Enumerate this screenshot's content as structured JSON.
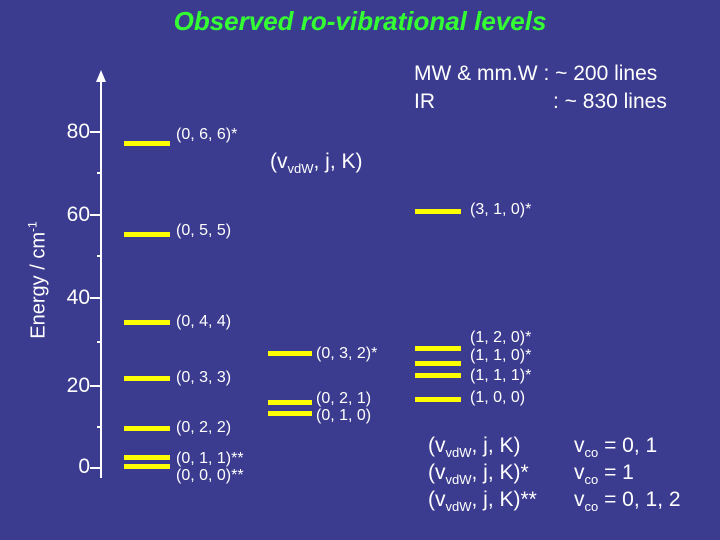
{
  "title": "Observed ro-vibrational levels",
  "stats": {
    "mw_line": "MW & mm.W : ~ 200 lines",
    "ir_label": "IR",
    "ir_value": ": ~ 830 lines"
  },
  "axis": {
    "ylabel": "Energy / cm",
    "ylabel_sup": "-1",
    "ticks": [
      "0",
      "20",
      "40",
      "60",
      "80"
    ]
  },
  "notation": {
    "prefix": "(v",
    "sub": "vdW",
    "suffix": ", j, K)"
  },
  "levels": {
    "col1": [
      "(0, 0, 0)**",
      "(0, 1, 1)**",
      "(0, 2, 2)",
      "(0, 3, 3)",
      "(0, 4, 4)",
      "(0, 5, 5)",
      "(0, 6, 6)*"
    ],
    "col2": [
      "(0, 1, 0)",
      "(0, 2, 1)",
      "(0, 3, 2)*"
    ],
    "col3": [
      "(1, 0, 0)",
      "(1, 1, 1)*",
      "(1, 1, 0)*",
      "(1, 2, 0)*",
      "(3, 1, 0)*"
    ]
  },
  "legend": [
    {
      "suffix": ", j, K)",
      "vco": "v",
      "vco_sub": "co",
      "vco_value": " = 0, 1"
    },
    {
      "suffix": ", j, K)*",
      "vco": "v",
      "vco_sub": "co",
      "vco_value": " = 1"
    },
    {
      "suffix": ", j, K)**",
      "vco": "v",
      "vco_sub": "co",
      "vco_value": " = 0, 1, 2"
    }
  ],
  "colors": {
    "background": "#3b3b8f",
    "title": "#33ff33",
    "level": "#ffff00",
    "axis": "#ffffff"
  }
}
